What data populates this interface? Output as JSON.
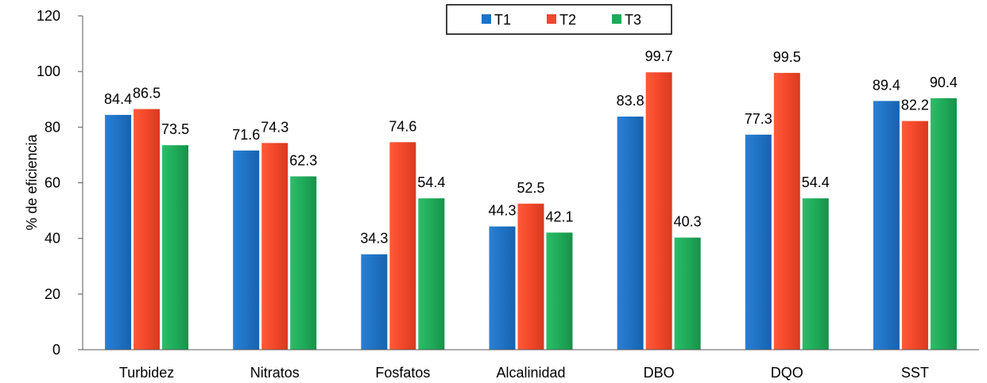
{
  "chart_data": {
    "type": "bar",
    "title": "",
    "xlabel": "",
    "ylabel": "% de eficiencia",
    "ylim": [
      0,
      120
    ],
    "yticks": [
      0,
      20,
      40,
      60,
      80,
      100,
      120
    ],
    "grid": false,
    "legend_position": "top-center",
    "categories": [
      "Turbidez",
      "Nitratos",
      "Fosfatos",
      "Alcalinidad",
      "DBO",
      "DQO",
      "SST"
    ],
    "series": [
      {
        "name": "T1",
        "color": "#1f72c4",
        "values": [
          84.4,
          71.6,
          34.3,
          44.3,
          83.8,
          77.3,
          89.4
        ]
      },
      {
        "name": "T2",
        "color": "#f2472a",
        "values": [
          86.5,
          74.3,
          74.6,
          52.5,
          99.7,
          99.5,
          82.2
        ]
      },
      {
        "name": "T3",
        "color": "#1faa59",
        "values": [
          73.5,
          62.3,
          54.4,
          42.1,
          40.3,
          54.4,
          90.4
        ]
      }
    ]
  }
}
